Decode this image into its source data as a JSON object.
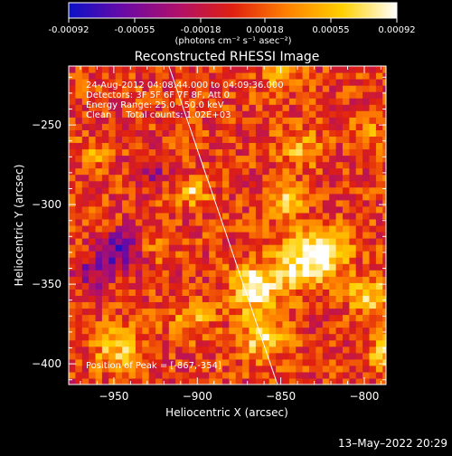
{
  "colorbar": {
    "ticks": [
      "-0.00092",
      "-0.00055",
      "-0.00018",
      "0.00018",
      "0.00055",
      "0.00092"
    ],
    "tick_values": [
      -0.00092,
      -0.00055,
      -0.00018,
      0.00018,
      0.00055,
      0.00092
    ],
    "units": "(photons cm⁻² s⁻¹ asec⁻²)",
    "stops": [
      "#0a12c8",
      "#6a0aa6",
      "#b0106a",
      "#e02010",
      "#ff8200",
      "#ffd000",
      "#ffffff"
    ]
  },
  "chart_data": {
    "type": "heatmap",
    "title": "Reconstructed RHESSI Image",
    "xlabel": "Heliocentric X (arcsec)",
    "ylabel": "Heliocentric Y (arcsec)",
    "xlim": [
      -977,
      -787
    ],
    "ylim": [
      -413,
      -213
    ],
    "x_ticks": [
      -950,
      -900,
      -850,
      -800
    ],
    "x_tick_labels": [
      "−950",
      "−900",
      "−850",
      "−800"
    ],
    "y_ticks": [
      -400,
      -350,
      -300,
      -250
    ],
    "y_tick_labels": [
      "−400",
      "−350",
      "−300",
      "−250"
    ],
    "zlim": [
      -0.00092,
      0.00092
    ],
    "grid": false,
    "annotations": [
      "24-Aug-2012 04:08:44.000 to 04:09:36.000",
      "Detectors: 3F 5F 6F 7F 8F, Att 0",
      "Energy Range: 25.0 - 50.0 keV",
      "Clean     Total counts: 1.02E+03"
    ],
    "peak_label": "Position of Peak = [-867,-354]",
    "peak": [
      -867,
      -354
    ],
    "limb_line": [
      [
        -917,
        -213
      ],
      [
        -852,
        -413
      ]
    ],
    "sources": [
      {
        "x": -867,
        "y": -354,
        "intensity": 0.00092,
        "radius": 14
      },
      {
        "x": -840,
        "y": -338,
        "intensity": 0.0008,
        "radius": 16
      },
      {
        "x": -822,
        "y": -330,
        "intensity": 0.00075,
        "radius": 12
      },
      {
        "x": -862,
        "y": -385,
        "intensity": 0.0007,
        "radius": 13
      },
      {
        "x": -905,
        "y": -293,
        "intensity": 0.0006,
        "radius": 9
      },
      {
        "x": -848,
        "y": -300,
        "intensity": 0.00058,
        "radius": 10
      },
      {
        "x": -840,
        "y": -266,
        "intensity": 0.00045,
        "radius": 12
      },
      {
        "x": -850,
        "y": -222,
        "intensity": 0.0004,
        "radius": 10
      },
      {
        "x": -800,
        "y": -358,
        "intensity": 0.00065,
        "radius": 11
      },
      {
        "x": -790,
        "y": -395,
        "intensity": 0.0006,
        "radius": 10
      },
      {
        "x": -950,
        "y": -392,
        "intensity": 0.00055,
        "radius": 14
      },
      {
        "x": -905,
        "y": -373,
        "intensity": 0.00045,
        "radius": 12
      },
      {
        "x": -965,
        "y": -270,
        "intensity": 0.0004,
        "radius": 8
      },
      {
        "x": -925,
        "y": -327,
        "intensity": 0.0003,
        "radius": 8
      },
      {
        "x": -800,
        "y": -255,
        "intensity": 0.00035,
        "radius": 10
      },
      {
        "x": -950,
        "y": -330,
        "intensity": -0.0007,
        "radius": 12
      },
      {
        "x": -930,
        "y": -280,
        "intensity": -0.0004,
        "radius": 10
      },
      {
        "x": -965,
        "y": -345,
        "intensity": -0.0005,
        "radius": 10
      }
    ]
  },
  "footer": {
    "datestamp": "13–May–2022 20:29"
  }
}
